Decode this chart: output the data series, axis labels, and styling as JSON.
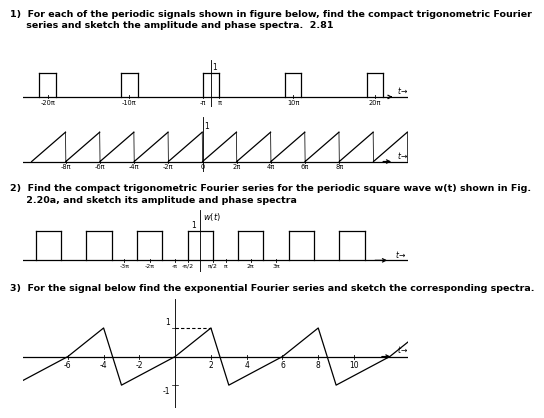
{
  "bg_color": "#ffffff",
  "text_color": "#000000",
  "s1_line1": "1)  For each of the periodic signals shown in figure below, find the compact trigonometric Fourier",
  "s1_line2": "     series and sketch the amplitude and phase spectra.  2.81",
  "s2_line1": "2)  Find the compact trigonometric Fourier series for the periodic square wave w(t) shown in Fig.",
  "s2_line2": "     2.20a, and sketch its amplitude and phase spectra",
  "s3_line1": "3)  For the signal below find the exponential Fourier series and sketch the corresponding spectra.",
  "fs_text": 6.8,
  "fs_tick": 5.5,
  "lw": 0.9
}
